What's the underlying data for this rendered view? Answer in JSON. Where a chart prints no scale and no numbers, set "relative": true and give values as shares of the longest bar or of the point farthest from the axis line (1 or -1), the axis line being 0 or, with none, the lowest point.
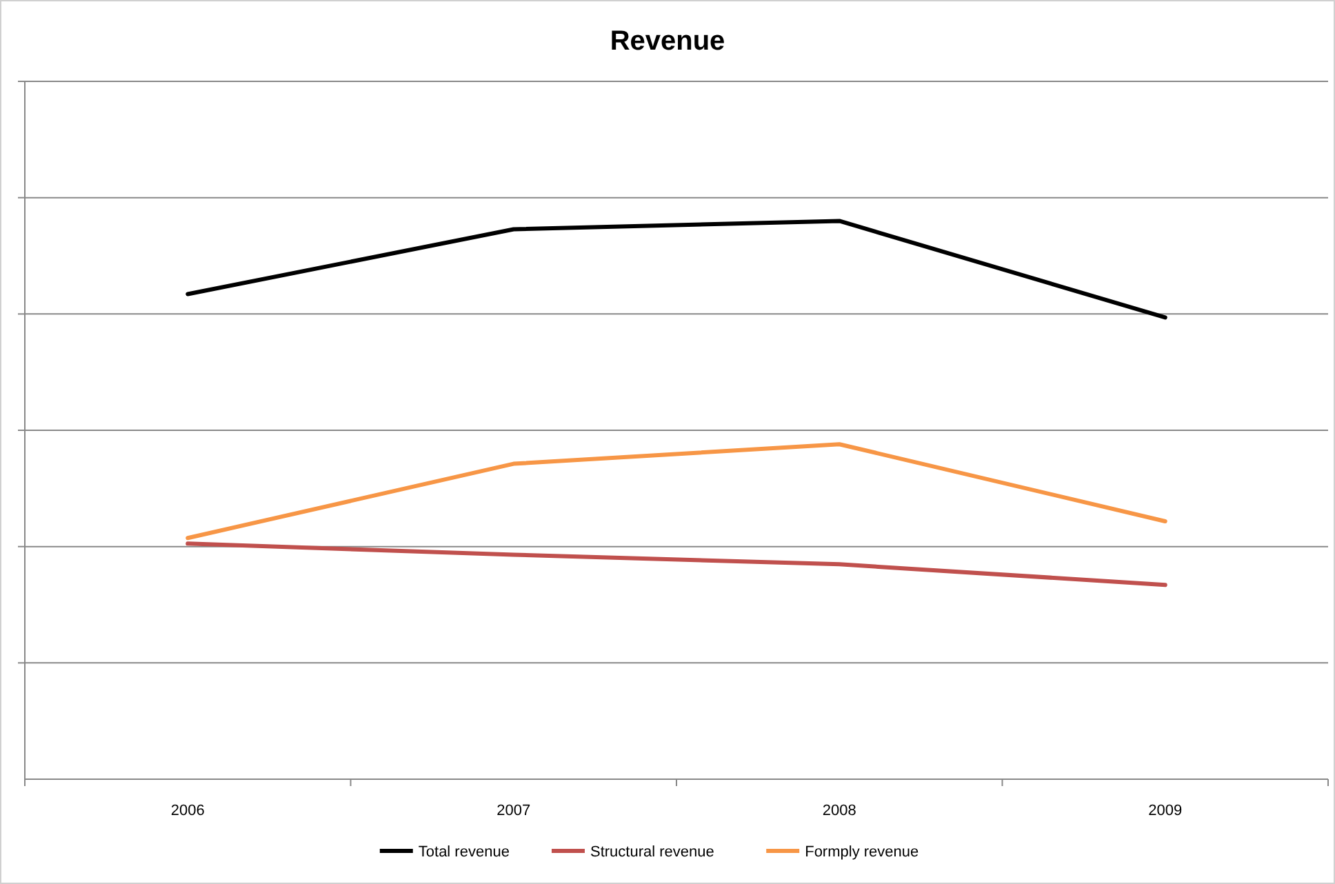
{
  "chart_data": {
    "type": "line",
    "title": "Revenue",
    "relative": true,
    "categories": [
      "2006",
      "2007",
      "2008",
      "2009"
    ],
    "series": [
      {
        "name": "Total revenue",
        "color": "#000000",
        "values": [
          0.869,
          0.985,
          1,
          0.827
        ]
      },
      {
        "name": "Structural revenue",
        "color": "#c0504d",
        "values": [
          0.422,
          0.402,
          0.385,
          0.348
        ]
      },
      {
        "name": "Formply revenue",
        "color": "#f79646",
        "values": [
          0.432,
          0.565,
          0.6,
          0.462
        ]
      }
    ],
    "grid": "y",
    "legend": "bottom",
    "marker": "none",
    "line_style": "solid"
  }
}
